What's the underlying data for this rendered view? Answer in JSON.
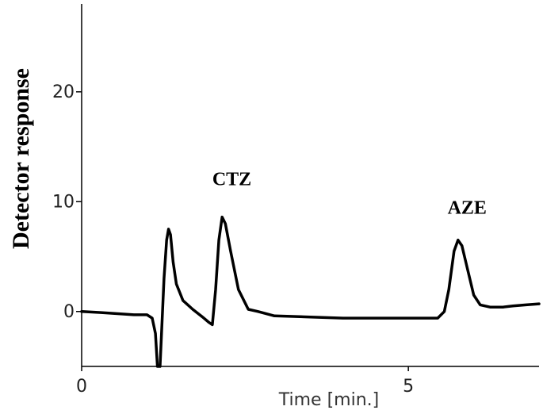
{
  "chart_data": {
    "type": "line",
    "xlabel": "Time [min.]",
    "ylabel": "Detector response",
    "xlim": [
      0,
      7
    ],
    "ylim": [
      -5,
      28
    ],
    "x_ticks": [
      {
        "value": 0,
        "label": "0"
      },
      {
        "value": 5,
        "label": "5"
      }
    ],
    "y_ticks": [
      {
        "value": 0,
        "label": "0"
      },
      {
        "value": 10,
        "label": "10"
      },
      {
        "value": 20,
        "label": "20"
      }
    ],
    "grid": false,
    "series": [
      {
        "color": "#000000",
        "points": [
          [
            0.0,
            0.0
          ],
          [
            0.3,
            -0.1
          ],
          [
            0.55,
            -0.2
          ],
          [
            0.8,
            -0.3
          ],
          [
            1.0,
            -0.3
          ],
          [
            1.08,
            -0.6
          ],
          [
            1.13,
            -2.0
          ],
          [
            1.16,
            -5.0
          ],
          [
            1.2,
            -5.0
          ],
          [
            1.23,
            -1.0
          ],
          [
            1.26,
            3.0
          ],
          [
            1.3,
            6.5
          ],
          [
            1.33,
            7.5
          ],
          [
            1.36,
            7.0
          ],
          [
            1.4,
            4.5
          ],
          [
            1.45,
            2.5
          ],
          [
            1.55,
            1.0
          ],
          [
            1.7,
            0.2
          ],
          [
            1.85,
            -0.5
          ],
          [
            1.95,
            -1.0
          ],
          [
            2.0,
            -1.2
          ],
          [
            2.05,
            2.0
          ],
          [
            2.1,
            6.5
          ],
          [
            2.15,
            8.6
          ],
          [
            2.2,
            8.0
          ],
          [
            2.28,
            5.5
          ],
          [
            2.4,
            2.0
          ],
          [
            2.55,
            0.2
          ],
          [
            2.7,
            0.0
          ],
          [
            2.95,
            -0.4
          ],
          [
            3.5,
            -0.5
          ],
          [
            4.0,
            -0.6
          ],
          [
            4.5,
            -0.6
          ],
          [
            5.0,
            -0.6
          ],
          [
            5.45,
            -0.6
          ],
          [
            5.55,
            0.0
          ],
          [
            5.62,
            2.0
          ],
          [
            5.7,
            5.5
          ],
          [
            5.76,
            6.5
          ],
          [
            5.82,
            6.0
          ],
          [
            5.9,
            4.0
          ],
          [
            6.0,
            1.5
          ],
          [
            6.1,
            0.6
          ],
          [
            6.25,
            0.4
          ],
          [
            6.45,
            0.4
          ],
          [
            6.6,
            0.5
          ],
          [
            6.8,
            0.6
          ],
          [
            7.0,
            0.7
          ]
        ]
      }
    ],
    "annotations": [
      {
        "text": "CTZ",
        "x": 2.0,
        "y": 11.5
      },
      {
        "text": "AZE",
        "x": 5.6,
        "y": 8.9
      }
    ]
  }
}
